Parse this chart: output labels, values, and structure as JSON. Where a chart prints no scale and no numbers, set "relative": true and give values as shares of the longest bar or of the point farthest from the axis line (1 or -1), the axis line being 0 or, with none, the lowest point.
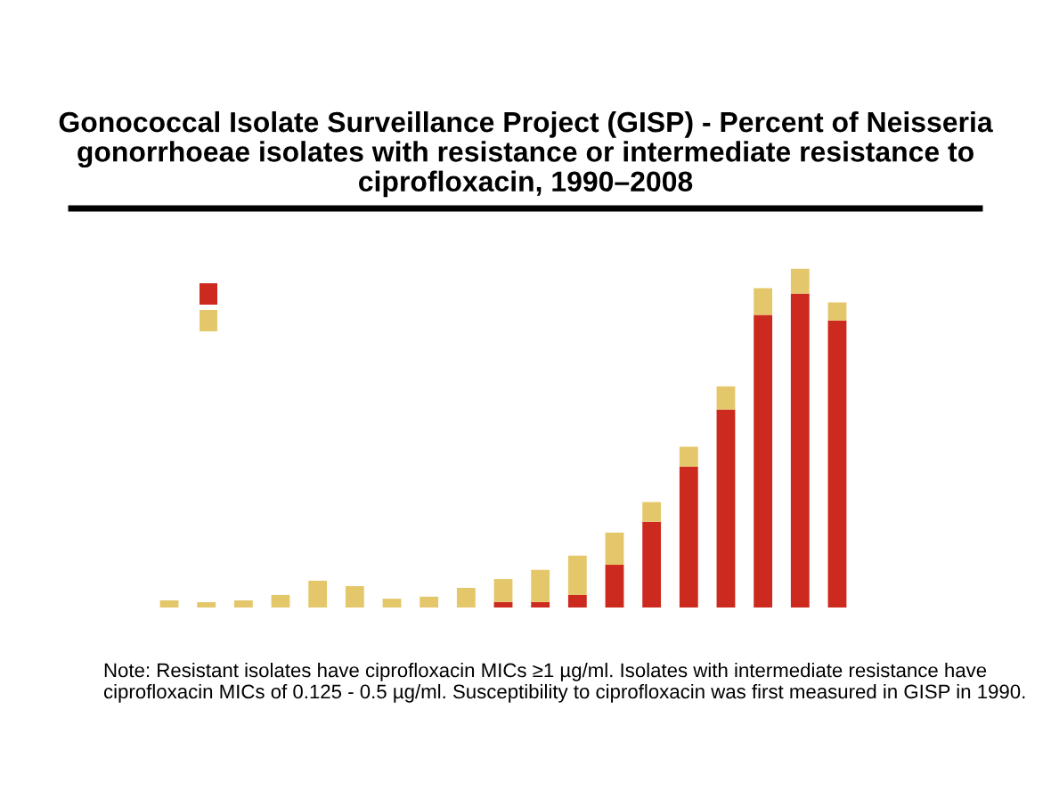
{
  "chart_data": {
    "type": "bar",
    "title": "Gonococcal Isolate Surveillance Project (GISP) - Percent of Neisseria gonorrhoeae isolates with resistance or intermediate resistance to ciprofloxacin, 1990–2008",
    "categories": [
      null,
      null,
      null,
      null,
      null,
      null,
      null,
      null,
      null,
      null,
      null,
      null,
      null,
      null,
      null,
      null,
      null,
      null,
      null
    ],
    "relative": true,
    "stacked": true,
    "grid": false,
    "series": [
      {
        "color": "#cc2a1e",
        "values": [
          0,
          0,
          0,
          0,
          0,
          0,
          0,
          0,
          0,
          0.016,
          0.016,
          0.037,
          0.126,
          0.253,
          0.416,
          0.584,
          0.863,
          0.926,
          0.847
        ]
      },
      {
        "color": "#e5c76b",
        "values": [
          0.021,
          0.016,
          0.021,
          0.037,
          0.079,
          0.063,
          0.026,
          0.032,
          0.058,
          0.068,
          0.095,
          0.116,
          0.095,
          0.058,
          0.058,
          0.068,
          0.079,
          0.074,
          0.053
        ]
      }
    ],
    "annotations": [
      "Note: Resistant isolates have ciprofloxacin MICs ≥1 µg/ml. Isolates with intermediate resistance have ciprofloxacin MICs of 0.125 - 0.5 µg/ml. Susceptibility to ciprofloxacin was first measured in GISP in 1990."
    ]
  }
}
